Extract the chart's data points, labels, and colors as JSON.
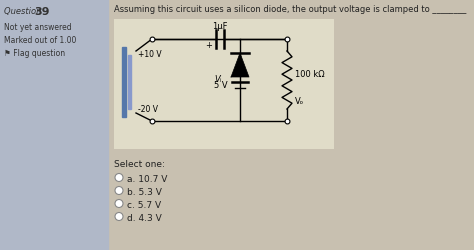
{
  "sidebar_bg": "#b0b8c8",
  "sidebar_text_color": "#333333",
  "question_num_prefix": "Question ",
  "question_num": "39",
  "sidebar_lines": [
    "Not yet answered",
    "Marked out of 1.00",
    "⚑ Flag question"
  ],
  "main_bg": "#c8c0b0",
  "question_text": "Assuming this circuit uses a silicon diode, the output voltage is clamped to ________",
  "circuit_bg": "#e0dcc8",
  "select_one": "Select one:",
  "options": [
    "a. 10.7 V",
    "b. 5.3 V",
    "c. 5.7 V",
    "d. 4.3 V"
  ],
  "main_text_color": "#222222",
  "circuit_label_1uF": "1μF",
  "circuit_label_vi": "Vᵢ",
  "circuit_label_5V": "5 V",
  "circuit_label_100k": "100 kΩ",
  "circuit_label_vo": "Vₒ",
  "circuit_label_plus10": "+10 V",
  "circuit_label_minus20": "-20 V",
  "src_bar_color": "#5577aa",
  "src_bar_light": "#8899cc"
}
